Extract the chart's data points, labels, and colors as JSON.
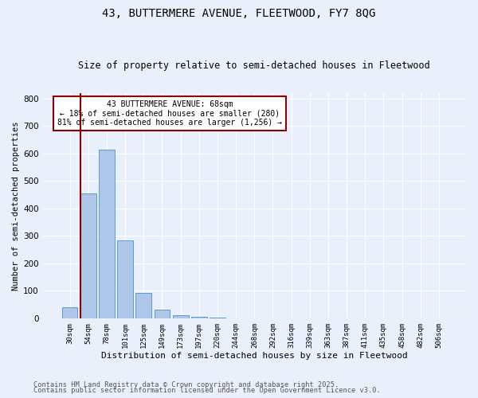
{
  "title1": "43, BUTTERMERE AVENUE, FLEETWOOD, FY7 8QG",
  "title2": "Size of property relative to semi-detached houses in Fleetwood",
  "xlabel": "Distribution of semi-detached houses by size in Fleetwood",
  "ylabel": "Number of semi-detached properties",
  "categories": [
    "30sqm",
    "54sqm",
    "78sqm",
    "101sqm",
    "125sqm",
    "149sqm",
    "173sqm",
    "197sqm",
    "220sqm",
    "244sqm",
    "268sqm",
    "292sqm",
    "316sqm",
    "339sqm",
    "363sqm",
    "387sqm",
    "411sqm",
    "435sqm",
    "458sqm",
    "482sqm",
    "506sqm"
  ],
  "values": [
    40,
    455,
    615,
    285,
    93,
    30,
    12,
    5,
    2,
    0,
    0,
    0,
    0,
    0,
    0,
    0,
    0,
    0,
    0,
    0,
    0
  ],
  "bar_color": "#aec6e8",
  "bar_edge_color": "#5b9bd5",
  "vline_color": "#8b0000",
  "annotation_title": "43 BUTTERMERE AVENUE: 68sqm",
  "annotation_line1": "← 18% of semi-detached houses are smaller (280)",
  "annotation_line2": "81% of semi-detached houses are larger (1,256) →",
  "annotation_box_edge": "#8b0000",
  "ylim": [
    0,
    820
  ],
  "yticks": [
    0,
    100,
    200,
    300,
    400,
    500,
    600,
    700,
    800
  ],
  "footer1": "Contains HM Land Registry data © Crown copyright and database right 2025.",
  "footer2": "Contains public sector information licensed under the Open Government Licence v3.0.",
  "bg_color": "#eaf0fb",
  "plot_bg_color": "#eaf0fb"
}
